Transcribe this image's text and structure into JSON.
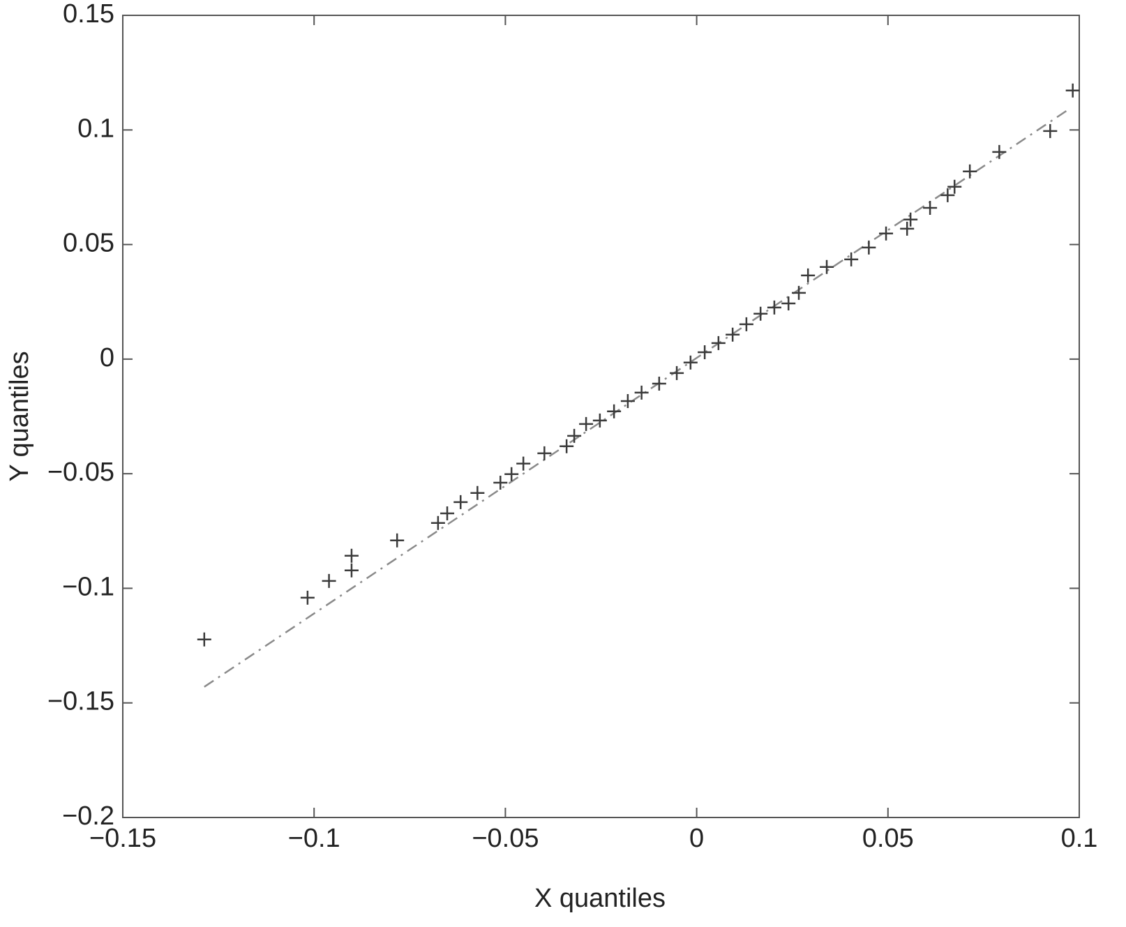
{
  "chart_data": {
    "type": "scatter",
    "xlabel": "X quantiles",
    "ylabel": "Y quantiles",
    "xlim": [
      -0.15,
      0.1
    ],
    "ylim": [
      -0.2,
      0.15
    ],
    "xticks": [
      {
        "value": -0.15,
        "label": "−0.15"
      },
      {
        "value": -0.1,
        "label": "−0.1"
      },
      {
        "value": -0.05,
        "label": "−0.05"
      },
      0,
      0.05,
      0.1
    ],
    "yticks": [
      {
        "value": -0.2,
        "label": "−0.2"
      },
      {
        "value": -0.15,
        "label": "−0.15"
      },
      {
        "value": -0.1,
        "label": "−0.1"
      },
      {
        "value": -0.05,
        "label": "−0.05"
      },
      0,
      0.05,
      0.1,
      0.15
    ],
    "marker": "+",
    "color": "#3a3a3a",
    "line_color": "#8a8a8a",
    "line_style": "dash-dot",
    "points": {
      "x": [
        -0.1287,
        -0.1017,
        -0.0961,
        -0.0902,
        -0.0902,
        -0.0783,
        -0.0676,
        -0.0652,
        -0.0617,
        -0.0573,
        -0.0513,
        -0.0484,
        -0.0453,
        -0.0398,
        -0.034,
        -0.032,
        -0.0289,
        -0.0253,
        -0.0216,
        -0.018,
        -0.0144,
        -0.0098,
        -0.0052,
        -0.0016,
        0.0021,
        0.0057,
        0.0094,
        0.013,
        0.0167,
        0.0203,
        0.024,
        0.0267,
        0.0291,
        0.034,
        0.0404,
        0.045,
        0.0495,
        0.055,
        0.0559,
        0.061,
        0.0656,
        0.0674,
        0.0714,
        0.0791,
        0.0924,
        0.0983
      ],
      "y": [
        -0.1223,
        -0.1041,
        -0.0968,
        -0.0858,
        -0.0922,
        -0.0791,
        -0.0715,
        -0.0673,
        -0.0624,
        -0.0584,
        -0.0539,
        -0.0502,
        -0.0456,
        -0.0411,
        -0.038,
        -0.0335,
        -0.0283,
        -0.0268,
        -0.0228,
        -0.0183,
        -0.0146,
        -0.0107,
        -0.0061,
        -0.0015,
        0.003,
        0.007,
        0.0107,
        0.0152,
        0.0198,
        0.0225,
        0.0243,
        0.0289,
        0.0365,
        0.0402,
        0.0435,
        0.0487,
        0.0548,
        0.0569,
        0.0609,
        0.066,
        0.0715,
        0.0752,
        0.0819,
        0.0904,
        0.0995,
        0.1172
      ]
    },
    "reference_line": {
      "x": [
        -0.1287,
        0.0969
      ],
      "y": [
        -0.143,
        0.1086
      ]
    }
  }
}
